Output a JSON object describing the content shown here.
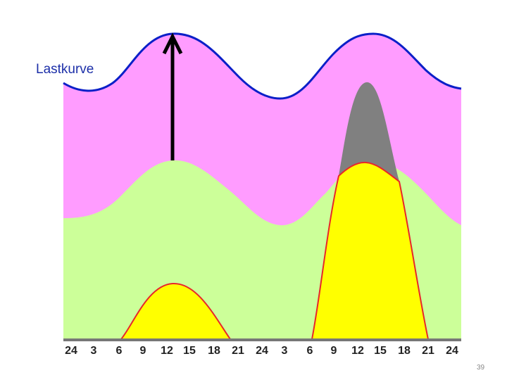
{
  "label": "Lastkurve",
  "page_number": "39",
  "x_axis_ticks": [
    "24",
    "3",
    "6",
    "9",
    "12",
    "15",
    "18",
    "21",
    "24",
    "3",
    "6",
    "9",
    "12",
    "15",
    "18",
    "21",
    "24"
  ],
  "colors": {
    "load_fill": "#ff9cff",
    "load_line": "#0a1fc8",
    "base_fill": "#ccff99",
    "peak_fill": "#ffff00",
    "peak_line": "#e8262a",
    "extra_peak_fill": "#808080",
    "arrow": "#000000"
  }
}
